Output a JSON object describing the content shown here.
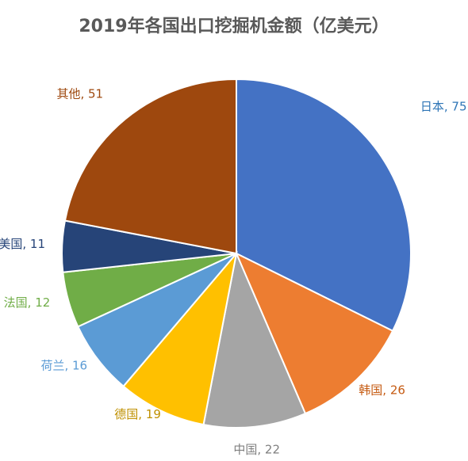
{
  "chart_data": {
    "type": "pie",
    "title": "2019年各国出口挖掘机金额（亿美元）",
    "slices": [
      {
        "label": "日本",
        "value": 75,
        "color": "#4472C4",
        "label_color": "#2E75B6"
      },
      {
        "label": "韩国",
        "value": 26,
        "color": "#ED7D31",
        "label_color": "#C55A11"
      },
      {
        "label": "中国",
        "value": 22,
        "color": "#A5A5A5",
        "label_color": "#7F7F7F"
      },
      {
        "label": "德国",
        "value": 19,
        "color": "#FFC000",
        "label_color": "#BF9000"
      },
      {
        "label": "荷兰",
        "value": 16,
        "color": "#5B9BD5",
        "label_color": "#5B9BD5"
      },
      {
        "label": "法国",
        "value": 12,
        "color": "#70AD47",
        "label_color": "#70AD47"
      },
      {
        "label": "美国",
        "value": 11,
        "color": "#264478",
        "label_color": "#264478"
      },
      {
        "label": "其他",
        "value": 51,
        "color": "#9E480E",
        "label_color": "#9E480E"
      }
    ],
    "separator": ", ",
    "start_angle_deg": 0,
    "direction": "clockwise"
  }
}
